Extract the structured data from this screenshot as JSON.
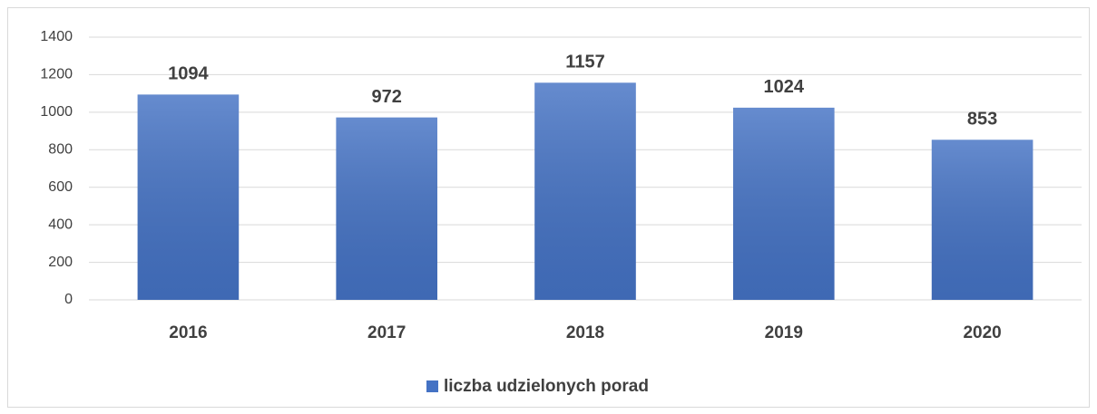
{
  "chart_data": {
    "type": "bar",
    "categories": [
      "2016",
      "2017",
      "2018",
      "2019",
      "2020"
    ],
    "series": [
      {
        "name": "liczba udzielonych porad",
        "color": "#4472c4",
        "values": [
          1094,
          972,
          1157,
          1024,
          853
        ]
      }
    ],
    "ylim": [
      0,
      1400
    ],
    "yticks": [
      0,
      200,
      400,
      600,
      800,
      1000,
      1200,
      1400
    ],
    "grid": true,
    "legend": "bottom"
  }
}
